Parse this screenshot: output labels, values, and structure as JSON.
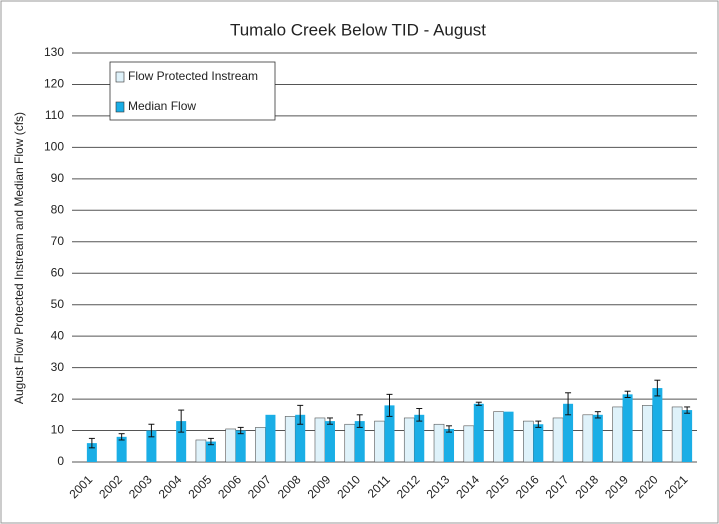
{
  "chart_data": {
    "type": "bar",
    "title": "Tumalo Creek Below TID - August",
    "y_label": "August Flow  Protected Instream and Median Flow (cfs)",
    "categories": [
      "2001",
      "2002",
      "2003",
      "2004",
      "2005",
      "2006",
      "2007",
      "2008",
      "2009",
      "2010",
      "2011",
      "2012",
      "2013",
      "2014",
      "2015",
      "2016",
      "2017",
      "2018",
      "2019",
      "2020",
      "2021"
    ],
    "series": [
      {
        "name": "Flow Protected Instream",
        "color": "#dff2fa",
        "values": [
          null,
          null,
          null,
          null,
          7,
          10.5,
          11,
          14.5,
          14,
          12,
          13,
          14,
          12,
          11.5,
          16,
          13,
          14,
          15,
          17.5,
          18,
          17.5
        ]
      },
      {
        "name": "Median Flow",
        "color": "#1aaee6",
        "values": [
          6,
          8,
          10,
          13,
          6.5,
          10,
          15,
          15,
          13,
          13,
          18,
          15,
          10.5,
          18.5,
          16,
          12,
          18.5,
          15,
          21.5,
          23.5,
          16.5
        ],
        "errors": [
          1.5,
          1,
          2,
          3.5,
          1,
          1,
          null,
          3,
          1,
          2,
          3.5,
          2,
          1,
          0.5,
          null,
          1,
          3.5,
          1,
          1,
          2.5,
          1
        ]
      }
    ],
    "ylim": [
      0,
      130
    ],
    "yticks": [
      0,
      10,
      20,
      30,
      40,
      50,
      60,
      70,
      80,
      90,
      100,
      110,
      120,
      130
    ],
    "grid": true
  }
}
